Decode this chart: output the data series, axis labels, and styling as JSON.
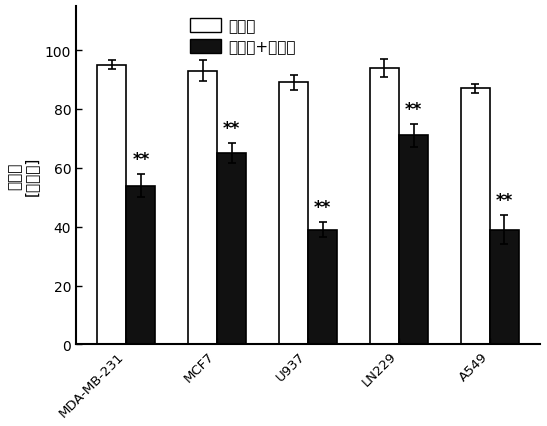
{
  "categories": [
    "MDA-MB-231",
    "MCF7",
    "U937",
    "LN229",
    "A549"
  ],
  "white_bars": [
    95,
    93,
    89,
    94,
    87
  ],
  "black_bars": [
    54,
    65,
    39,
    71,
    39
  ],
  "white_errors": [
    1.5,
    3.5,
    2.5,
    3.0,
    1.5
  ],
  "black_errors": [
    4.0,
    3.5,
    2.5,
    4.0,
    5.0
  ],
  "ylabel_line1": "存活率",
  "ylabel_line2": "[％对照]",
  "legend_white": "紫杉醇",
  "legend_black": "紫杉醇+莲心碱",
  "ylim": [
    0,
    115
  ],
  "yticks": [
    0,
    20,
    40,
    60,
    80,
    100
  ],
  "bar_width": 0.32,
  "significance_label": "**",
  "white_bar_color": "#ffffff",
  "black_bar_color": "#111111",
  "edge_color": "#000000",
  "background_color": "#ffffff"
}
